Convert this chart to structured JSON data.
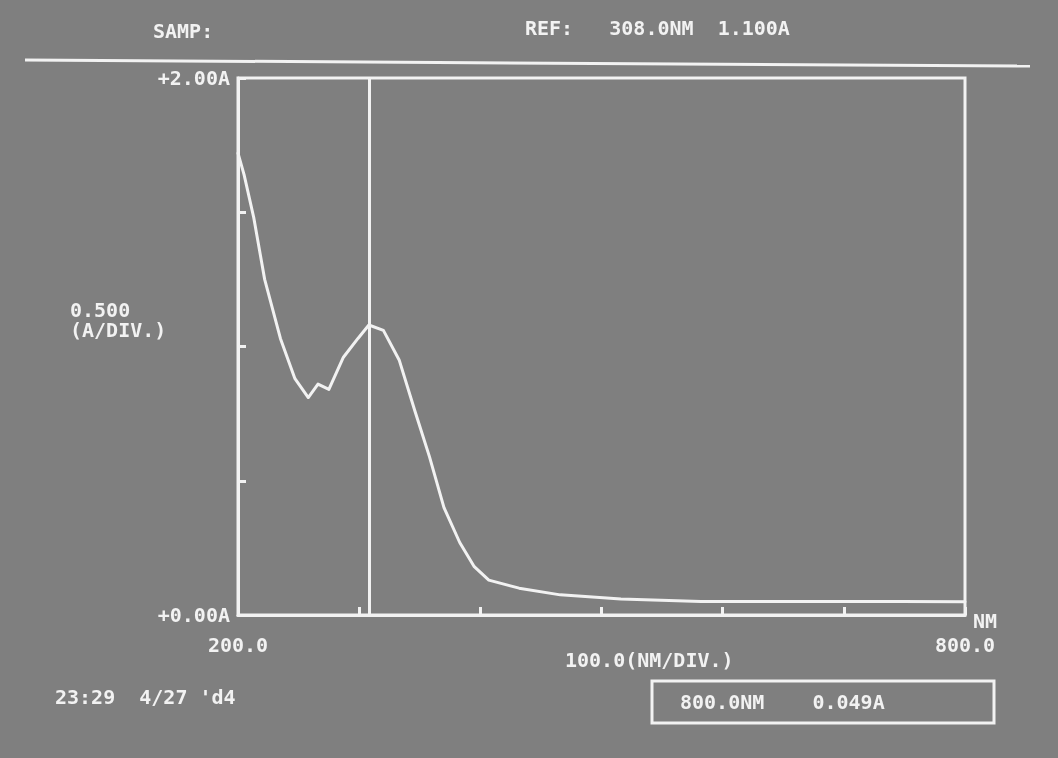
{
  "chart_data": {
    "type": "line",
    "title": "SAMP:",
    "xlabel": "NM",
    "annotations": [
      "REF:   308.0NM  1.100A",
      "0.500\n(A/DIV.)",
      "100.0(NM/DIV.)",
      "23:29  4/27 'd4",
      "800.0NM    0.049A"
    ],
    "x": [
      200,
      205,
      213,
      222,
      235,
      247,
      258,
      266,
      275,
      287,
      299,
      308,
      320,
      333,
      346,
      358,
      370,
      383,
      395,
      407,
      432,
      466,
      516,
      582,
      665,
      747,
      800
    ],
    "series": [
      {
        "color": "#f2f2f2",
        "values": [
          1.72,
          1.64,
          1.48,
          1.25,
          1.03,
          0.88,
          0.81,
          0.86,
          0.84,
          0.96,
          1.03,
          1.08,
          1.06,
          0.95,
          0.76,
          0.59,
          0.4,
          0.27,
          0.18,
          0.13,
          0.1,
          0.075,
          0.06,
          0.05,
          0.05,
          0.05,
          0.049
        ]
      }
    ],
    "xlim": [
      200,
      800
    ],
    "ylim": [
      0,
      2
    ],
    "xticks": [
      {
        "value": 200,
        "label": "200.0"
      },
      {
        "value": 300,
        "label": null
      },
      {
        "value": 400,
        "label": null
      },
      {
        "value": 500,
        "label": null
      },
      {
        "value": 600,
        "label": null
      },
      {
        "value": 700,
        "label": null
      },
      {
        "value": 800,
        "label": "800.0"
      }
    ],
    "yticks": [
      {
        "value": 0,
        "label": "+0.00A"
      },
      {
        "value": 0.5,
        "label": null
      },
      {
        "value": 1,
        "label": null
      },
      {
        "value": 1.5,
        "label": null
      },
      {
        "value": 2,
        "label": "+2.00A"
      }
    ],
    "ref_lines": [
      {
        "axis": "x",
        "value": 308,
        "color": "#f2f2f2"
      }
    ],
    "grid": false,
    "marker": "none",
    "line_style": "solid"
  }
}
